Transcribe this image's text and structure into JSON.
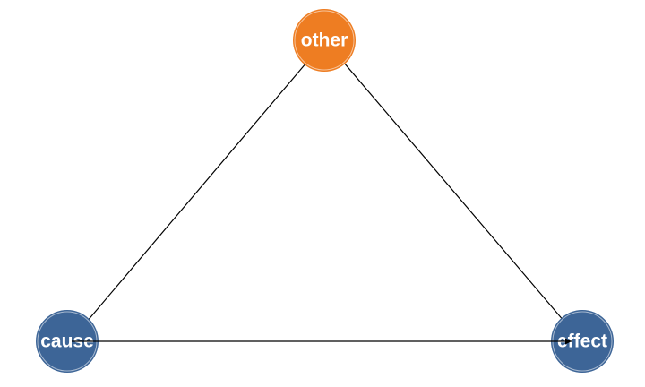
{
  "diagram": {
    "colors": {
      "confounder": "#ee7d22",
      "variable": "#3d6597",
      "ring": "#ffffff",
      "edge": "#000000"
    },
    "nodes": [
      {
        "id": "other",
        "label": "other",
        "role": "confounder"
      },
      {
        "id": "cause",
        "label": "cause",
        "role": "variable"
      },
      {
        "id": "effect",
        "label": "effect",
        "role": "variable"
      }
    ],
    "edges": [
      {
        "from": "other",
        "to": "cause"
      },
      {
        "from": "other",
        "to": "effect"
      },
      {
        "from": "cause",
        "to": "effect"
      }
    ]
  }
}
